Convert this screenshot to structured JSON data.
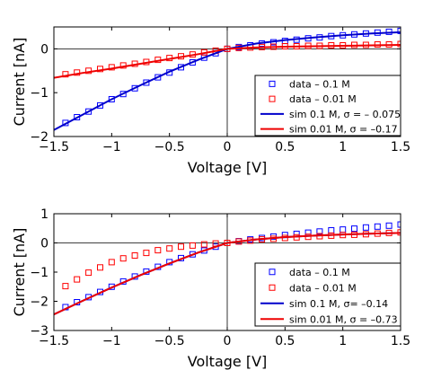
{
  "chart_data": [
    {
      "type": "line",
      "xlabel": "Voltage [V]",
      "ylabel": "Current [nA]",
      "xlim": [
        -1.5,
        1.5
      ],
      "ylim": [
        -2,
        0.5
      ],
      "xticks": [
        "−1.5",
        "−1",
        "−0.5",
        "0",
        "0.5",
        "1",
        "1.5"
      ],
      "xtick_values": [
        -1.5,
        -1,
        -0.5,
        0,
        0.5,
        1,
        1.5
      ],
      "yticks": [
        "−2",
        "−1",
        "0"
      ],
      "ytick_values": [
        -2,
        -1,
        0
      ],
      "reference_lines": {
        "x": 0,
        "y": 0
      },
      "legend_position": "bottom-right",
      "series": [
        {
          "name": "data – 0.1 M",
          "kind": "markers",
          "marker": "square",
          "color": "#0000ff",
          "points": [
            [
              -1.4,
              -1.69
            ],
            [
              -1.3,
              -1.56
            ],
            [
              -1.2,
              -1.43
            ],
            [
              -1.1,
              -1.29
            ],
            [
              -1.0,
              -1.15
            ],
            [
              -0.9,
              -1.03
            ],
            [
              -0.8,
              -0.9
            ],
            [
              -0.7,
              -0.77
            ],
            [
              -0.6,
              -0.65
            ],
            [
              -0.5,
              -0.54
            ],
            [
              -0.4,
              -0.42
            ],
            [
              -0.3,
              -0.31
            ],
            [
              -0.2,
              -0.2
            ],
            [
              -0.1,
              -0.1
            ],
            [
              0.0,
              0.0
            ],
            [
              0.1,
              0.04
            ],
            [
              0.2,
              0.08
            ],
            [
              0.3,
              0.12
            ],
            [
              0.4,
              0.15
            ],
            [
              0.5,
              0.18
            ],
            [
              0.6,
              0.21
            ],
            [
              0.7,
              0.24
            ],
            [
              0.8,
              0.26
            ],
            [
              0.9,
              0.29
            ],
            [
              1.0,
              0.31
            ],
            [
              1.1,
              0.33
            ],
            [
              1.2,
              0.35
            ],
            [
              1.3,
              0.37
            ],
            [
              1.4,
              0.39
            ],
            [
              1.5,
              0.41
            ]
          ]
        },
        {
          "name": "data – 0.01 M",
          "kind": "markers",
          "marker": "square",
          "color": "#ff0000",
          "points": [
            [
              -1.4,
              -0.58
            ],
            [
              -1.3,
              -0.54
            ],
            [
              -1.2,
              -0.5
            ],
            [
              -1.1,
              -0.46
            ],
            [
              -1.0,
              -0.42
            ],
            [
              -0.9,
              -0.38
            ],
            [
              -0.8,
              -0.34
            ],
            [
              -0.7,
              -0.3
            ],
            [
              -0.6,
              -0.25
            ],
            [
              -0.5,
              -0.21
            ],
            [
              -0.4,
              -0.17
            ],
            [
              -0.3,
              -0.13
            ],
            [
              -0.2,
              -0.08
            ],
            [
              -0.1,
              -0.04
            ],
            [
              0.0,
              0.0
            ],
            [
              0.1,
              0.02
            ],
            [
              0.2,
              0.03
            ],
            [
              0.3,
              0.04
            ],
            [
              0.4,
              0.05
            ],
            [
              0.5,
              0.06
            ],
            [
              0.6,
              0.06
            ],
            [
              0.7,
              0.07
            ],
            [
              0.8,
              0.07
            ],
            [
              0.9,
              0.08
            ],
            [
              1.0,
              0.08
            ],
            [
              1.1,
              0.09
            ],
            [
              1.2,
              0.09
            ],
            [
              1.3,
              0.1
            ],
            [
              1.4,
              0.1
            ],
            [
              1.5,
              0.11
            ]
          ]
        },
        {
          "name": "sim 0.1 M, σ = – 0.075",
          "kind": "line",
          "color": "#0000cc",
          "points": [
            [
              -1.5,
              -1.85
            ],
            [
              -1.25,
              -1.5
            ],
            [
              -1.0,
              -1.15
            ],
            [
              -0.75,
              -0.83
            ],
            [
              -0.5,
              -0.52
            ],
            [
              -0.25,
              -0.25
            ],
            [
              0.0,
              0.0
            ],
            [
              0.25,
              0.12
            ],
            [
              0.5,
              0.2
            ],
            [
              0.75,
              0.26
            ],
            [
              1.0,
              0.31
            ],
            [
              1.25,
              0.35
            ],
            [
              1.5,
              0.38
            ]
          ]
        },
        {
          "name": "sim 0.01 M, σ = –0.17",
          "kind": "line",
          "color": "#ee0000",
          "points": [
            [
              -1.5,
              -0.66
            ],
            [
              -1.25,
              -0.55
            ],
            [
              -1.0,
              -0.45
            ],
            [
              -0.75,
              -0.34
            ],
            [
              -0.5,
              -0.23
            ],
            [
              -0.25,
              -0.12
            ],
            [
              0.0,
              0.0
            ],
            [
              0.25,
              0.03
            ],
            [
              0.5,
              0.05
            ],
            [
              0.75,
              0.06
            ],
            [
              1.0,
              0.07
            ],
            [
              1.25,
              0.08
            ],
            [
              1.5,
              0.09
            ]
          ]
        }
      ]
    },
    {
      "type": "line",
      "xlabel": "Voltage [V]",
      "ylabel": "Current [nA]",
      "xlim": [
        -1.5,
        1.5
      ],
      "ylim": [
        -3,
        1
      ],
      "xticks": [
        "−1.5",
        "−1",
        "−0.5",
        "0",
        "0.5",
        "1",
        "1.5"
      ],
      "xtick_values": [
        -1.5,
        -1,
        -0.5,
        0,
        0.5,
        1,
        1.5
      ],
      "yticks": [
        "−3",
        "−2",
        "−1",
        "0",
        "1"
      ],
      "ytick_values": [
        -3,
        -2,
        -1,
        0,
        1
      ],
      "reference_lines": {
        "x": 0,
        "y": 0
      },
      "legend_position": "bottom-right",
      "series": [
        {
          "name": "data – 0.1 M",
          "kind": "markers",
          "marker": "square",
          "color": "#0000ff",
          "points": [
            [
              -1.4,
              -2.2
            ],
            [
              -1.3,
              -2.03
            ],
            [
              -1.2,
              -1.86
            ],
            [
              -1.1,
              -1.68
            ],
            [
              -1.0,
              -1.5
            ],
            [
              -0.9,
              -1.32
            ],
            [
              -0.8,
              -1.15
            ],
            [
              -0.7,
              -0.98
            ],
            [
              -0.6,
              -0.82
            ],
            [
              -0.5,
              -0.66
            ],
            [
              -0.4,
              -0.52
            ],
            [
              -0.3,
              -0.39
            ],
            [
              -0.2,
              -0.26
            ],
            [
              -0.1,
              -0.13
            ],
            [
              0.0,
              0.0
            ],
            [
              0.1,
              0.06
            ],
            [
              0.2,
              0.12
            ],
            [
              0.3,
              0.17
            ],
            [
              0.4,
              0.22
            ],
            [
              0.5,
              0.27
            ],
            [
              0.6,
              0.31
            ],
            [
              0.7,
              0.35
            ],
            [
              0.8,
              0.39
            ],
            [
              0.9,
              0.43
            ],
            [
              1.0,
              0.46
            ],
            [
              1.1,
              0.49
            ],
            [
              1.2,
              0.53
            ],
            [
              1.3,
              0.56
            ],
            [
              1.4,
              0.59
            ],
            [
              1.5,
              0.63
            ]
          ]
        },
        {
          "name": "data – 0.01 M",
          "kind": "markers",
          "marker": "square",
          "color": "#ff0000",
          "points": [
            [
              -1.4,
              -1.48
            ],
            [
              -1.3,
              -1.25
            ],
            [
              -1.2,
              -1.02
            ],
            [
              -1.1,
              -0.84
            ],
            [
              -1.0,
              -0.66
            ],
            [
              -0.9,
              -0.53
            ],
            [
              -0.8,
              -0.43
            ],
            [
              -0.7,
              -0.34
            ],
            [
              -0.6,
              -0.25
            ],
            [
              -0.5,
              -0.19
            ],
            [
              -0.4,
              -0.13
            ],
            [
              -0.3,
              -0.09
            ],
            [
              -0.2,
              -0.05
            ],
            [
              -0.1,
              -0.02
            ],
            [
              0.0,
              0.0
            ],
            [
              0.1,
              0.05
            ],
            [
              0.2,
              0.08
            ],
            [
              0.3,
              0.12
            ],
            [
              0.4,
              0.14
            ],
            [
              0.5,
              0.17
            ],
            [
              0.6,
              0.19
            ],
            [
              0.7,
              0.21
            ],
            [
              0.8,
              0.23
            ],
            [
              0.9,
              0.25
            ],
            [
              1.0,
              0.27
            ],
            [
              1.1,
              0.28
            ],
            [
              1.2,
              0.3
            ],
            [
              1.3,
              0.32
            ],
            [
              1.4,
              0.34
            ],
            [
              1.5,
              0.36
            ]
          ]
        },
        {
          "name": "sim 0.1 M, σ= –0.14",
          "kind": "line",
          "color": "#0000cc",
          "points": [
            [
              -1.5,
              -2.45
            ],
            [
              -1.25,
              -1.98
            ],
            [
              -1.0,
              -1.53
            ],
            [
              -0.75,
              -1.1
            ],
            [
              -0.5,
              -0.7
            ],
            [
              -0.25,
              -0.33
            ],
            [
              0.0,
              0.0
            ],
            [
              0.25,
              0.12
            ],
            [
              0.5,
              0.2
            ],
            [
              0.75,
              0.25
            ],
            [
              1.0,
              0.29
            ],
            [
              1.25,
              0.32
            ],
            [
              1.5,
              0.34
            ]
          ]
        },
        {
          "name": "sim 0.01 M, σ = –0.73",
          "kind": "line",
          "color": "#ee0000",
          "points": [
            [
              -1.5,
              -2.45
            ],
            [
              -1.25,
              -1.98
            ],
            [
              -1.0,
              -1.53
            ],
            [
              -0.75,
              -1.1
            ],
            [
              -0.5,
              -0.7
            ],
            [
              -0.25,
              -0.33
            ],
            [
              0.0,
              0.0
            ],
            [
              0.25,
              0.12
            ],
            [
              0.5,
              0.2
            ],
            [
              0.75,
              0.25
            ],
            [
              1.0,
              0.29
            ],
            [
              1.25,
              0.32
            ],
            [
              1.5,
              0.34
            ]
          ]
        }
      ]
    }
  ]
}
